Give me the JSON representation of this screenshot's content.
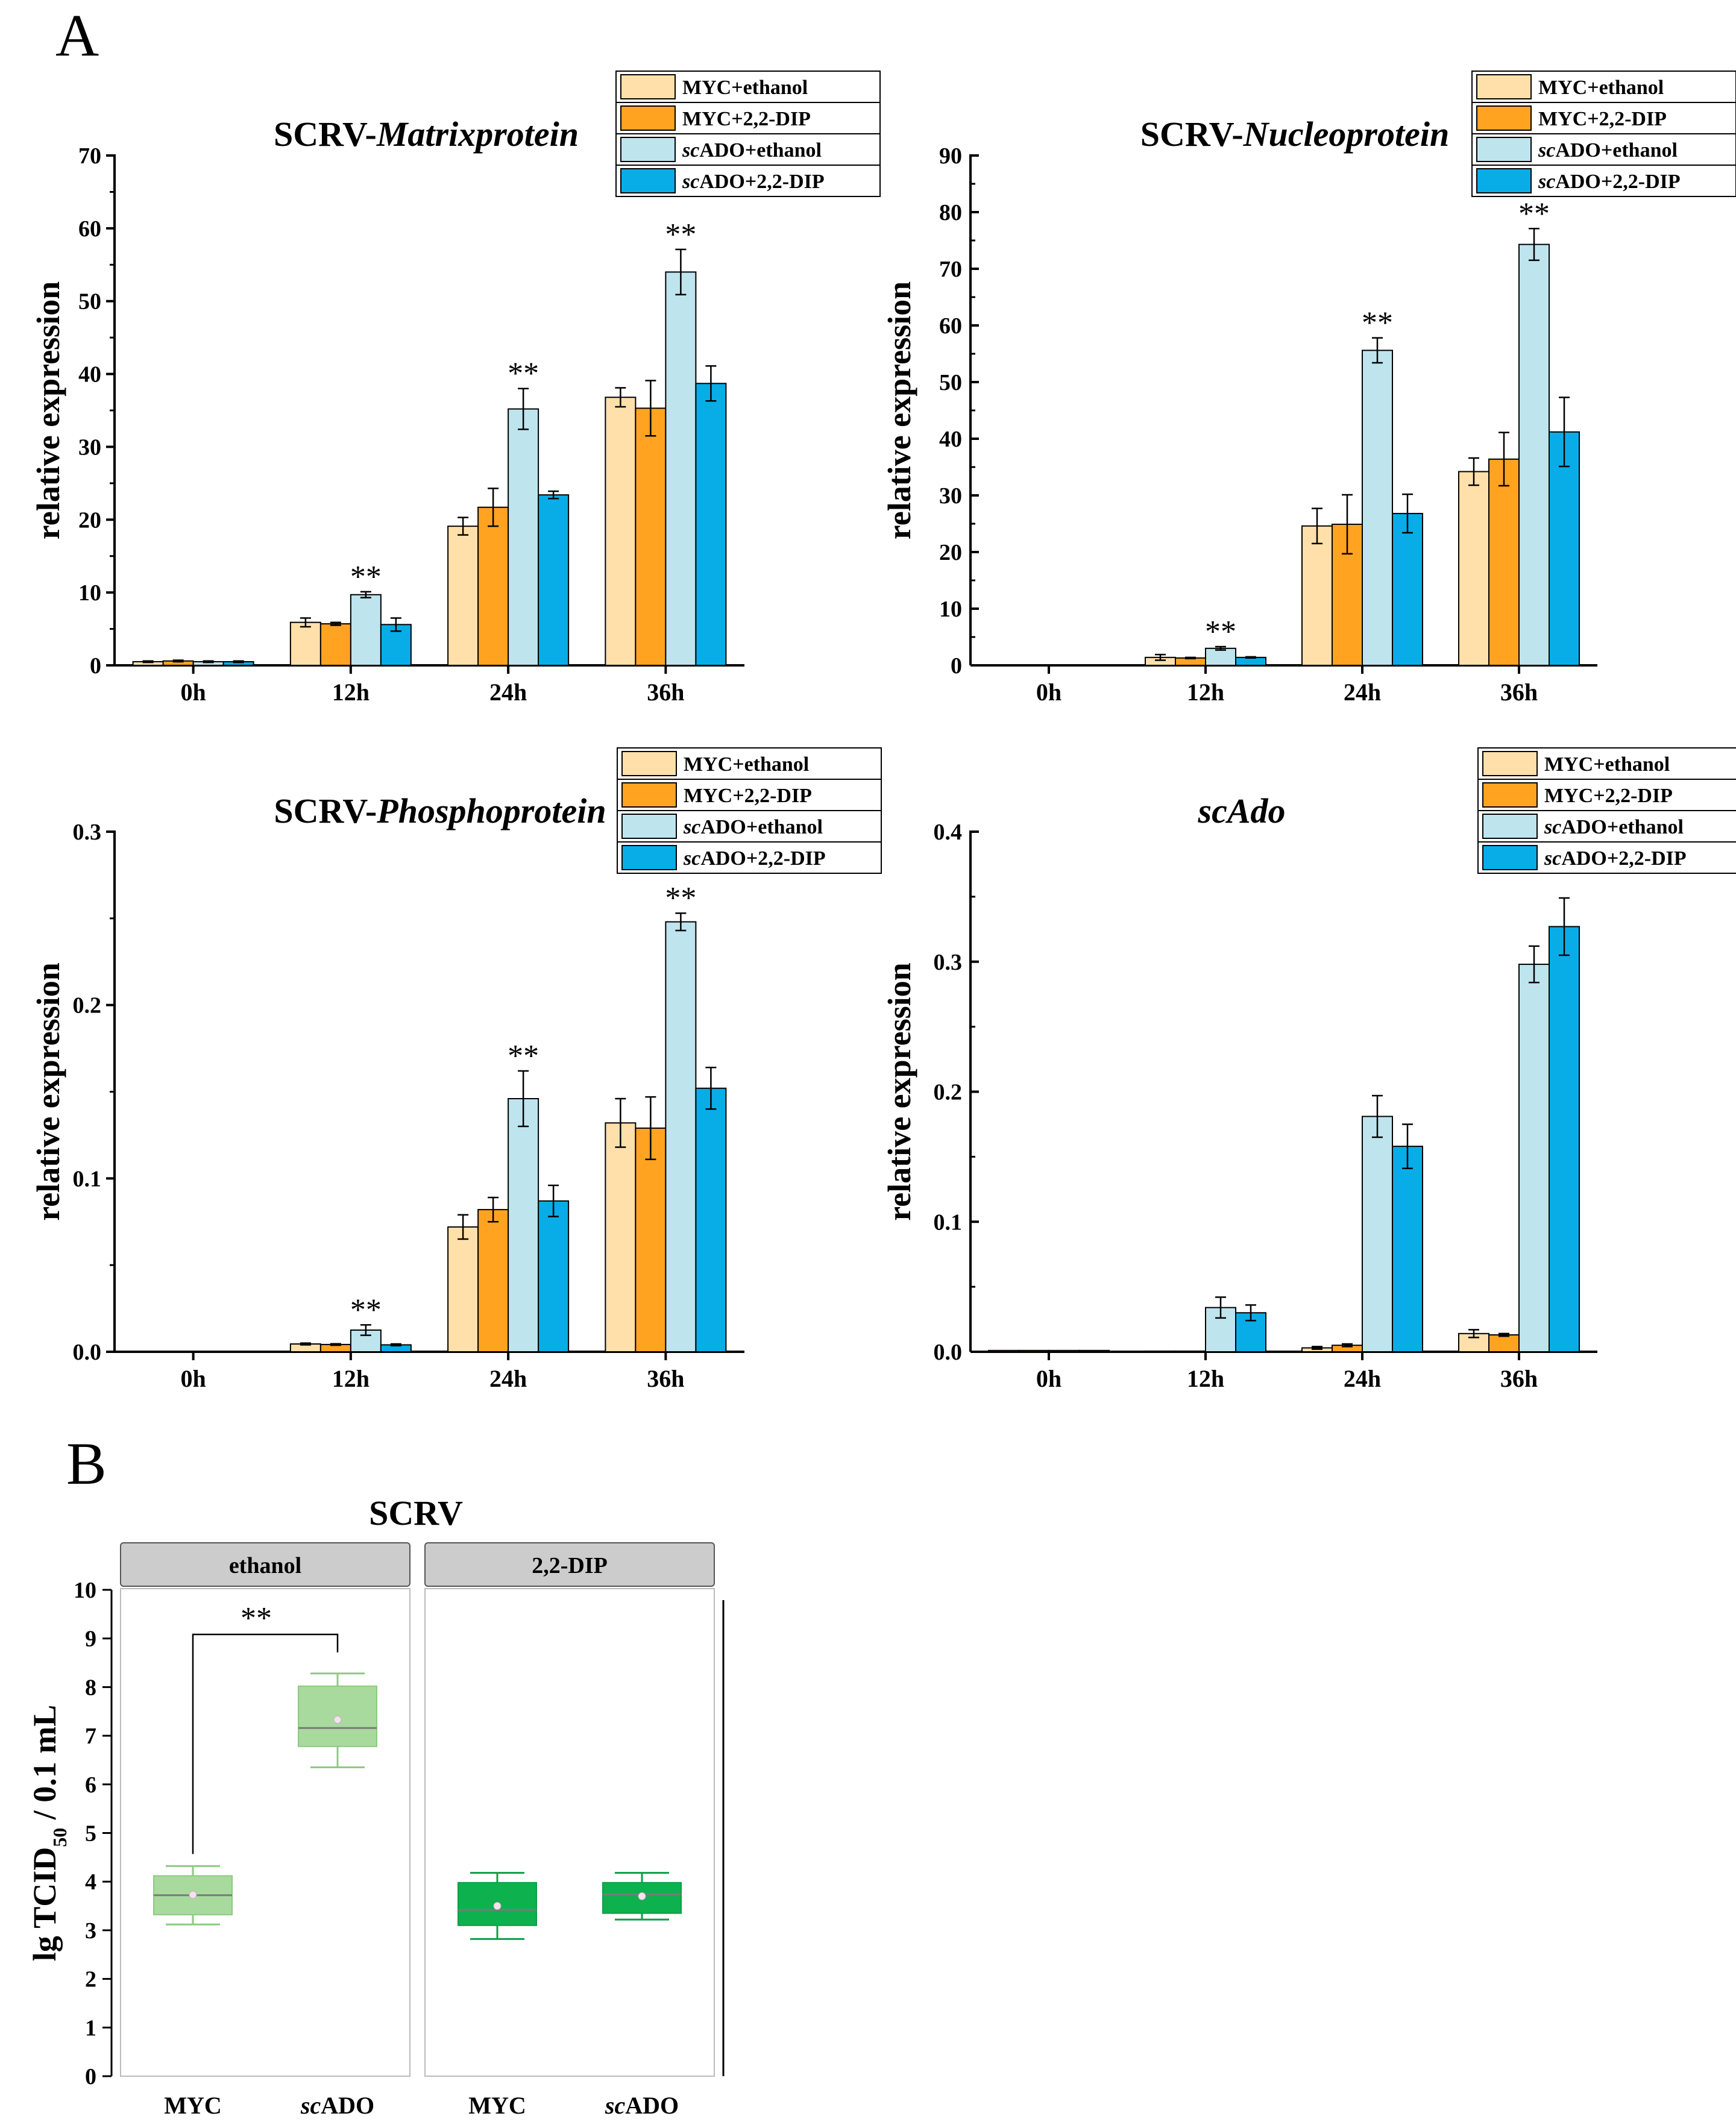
{
  "figure": {
    "panel_a_label": "A",
    "panel_b_label": "B"
  },
  "colors": {
    "myc_ethanol": "#FFE0AA",
    "myc_dip": "#FFA321",
    "scado_ethanol": "#BEE4EE",
    "scado_dip": "#08ADE8",
    "box_ethanol": "#A8DA9E",
    "box_ethanol_edge": "#8CCB80",
    "box_dip": "#0DB14E",
    "box_dip_edge": "#0A9F45",
    "strip_fill": "#CCCCCC",
    "median_line": "#7A7A7A"
  },
  "chart_data": [
    {
      "type": "bar",
      "title_prefix": "SCRV-",
      "title_italic": "Matrixprotein",
      "ylabel": "relative expression",
      "xlabel": "",
      "ylim": [
        0,
        70
      ],
      "yticks": [
        "0",
        "10",
        "20",
        "30",
        "40",
        "50",
        "60",
        "70"
      ],
      "ytick_values": [
        0,
        10,
        20,
        30,
        40,
        50,
        60,
        70
      ],
      "categories": [
        "0h",
        "12h",
        "24h",
        "36h"
      ],
      "legend_position": "top-right",
      "legend": [
        {
          "prefix": "MYC+ethanol",
          "italic": "",
          "suffix": "",
          "color_key": "myc_ethanol"
        },
        {
          "prefix": "MYC+2,2-DIP",
          "italic": "",
          "suffix": "",
          "color_key": "myc_dip"
        },
        {
          "prefix": "",
          "italic": "sc",
          "suffix": "ADO+ethanol",
          "color_key": "scado_ethanol"
        },
        {
          "prefix": "",
          "italic": "sc",
          "suffix": "ADO+2,2-DIP",
          "color_key": "scado_dip"
        }
      ],
      "series": [
        {
          "name": "MYC+ethanol",
          "color_key": "myc_ethanol",
          "values": [
            0.5,
            5.9,
            19.1,
            36.8
          ],
          "errors": [
            0.1,
            0.6,
            1.2,
            1.3
          ]
        },
        {
          "name": "MYC+2,2-DIP",
          "color_key": "myc_dip",
          "values": [
            0.6,
            5.7,
            21.7,
            35.3
          ],
          "errors": [
            0.1,
            0.2,
            2.6,
            3.8
          ]
        },
        {
          "name": "scADO+ethanol",
          "color_key": "scado_ethanol",
          "values": [
            0.5,
            9.7,
            35.2,
            54.0
          ],
          "errors": [
            0.1,
            0.4,
            2.8,
            3.1
          ]
        },
        {
          "name": "scADO+2,2-DIP",
          "color_key": "scado_dip",
          "values": [
            0.5,
            5.6,
            23.4,
            38.7
          ],
          "errors": [
            0.1,
            0.9,
            0.5,
            2.4
          ]
        }
      ],
      "annotations": [
        {
          "text": "**",
          "category_index": 1,
          "series_index": 2
        },
        {
          "text": "**",
          "category_index": 2,
          "series_index": 2
        },
        {
          "text": "**",
          "category_index": 3,
          "series_index": 2
        }
      ]
    },
    {
      "type": "bar",
      "title_prefix": "SCRV-",
      "title_italic": "Nucleoprotein",
      "ylabel": "relative expression",
      "xlabel": "",
      "ylim": [
        0,
        90
      ],
      "yticks": [
        "0",
        "10",
        "20",
        "30",
        "40",
        "50",
        "60",
        "70",
        "80",
        "90"
      ],
      "ytick_values": [
        0,
        10,
        20,
        30,
        40,
        50,
        60,
        70,
        80,
        90
      ],
      "categories": [
        "0h",
        "12h",
        "24h",
        "36h"
      ],
      "legend_position": "top-right",
      "legend": [
        {
          "prefix": "MYC+ethanol",
          "italic": "",
          "suffix": "",
          "color_key": "myc_ethanol"
        },
        {
          "prefix": "MYC+2,2-DIP",
          "italic": "",
          "suffix": "",
          "color_key": "myc_dip"
        },
        {
          "prefix": "",
          "italic": "sc",
          "suffix": "ADO+ethanol",
          "color_key": "scado_ethanol"
        },
        {
          "prefix": "",
          "italic": "sc",
          "suffix": "ADO+2,2-DIP",
          "color_key": "scado_dip"
        }
      ],
      "series": [
        {
          "name": "MYC+ethanol",
          "color_key": "myc_ethanol",
          "values": [
            0.05,
            1.4,
            24.6,
            34.2
          ],
          "errors": [
            0,
            0.5,
            3.1,
            2.4
          ]
        },
        {
          "name": "MYC+2,2-DIP",
          "color_key": "myc_dip",
          "values": [
            0.05,
            1.3,
            24.9,
            36.4
          ],
          "errors": [
            0,
            0.1,
            5.2,
            4.7
          ]
        },
        {
          "name": "scADO+ethanol",
          "color_key": "scado_ethanol",
          "values": [
            0.05,
            3.0,
            55.6,
            74.3
          ],
          "errors": [
            0,
            0.3,
            2.2,
            2.8
          ]
        },
        {
          "name": "scADO+2,2-DIP",
          "color_key": "scado_dip",
          "values": [
            0.05,
            1.4,
            26.8,
            41.2
          ],
          "errors": [
            0,
            0.1,
            3.4,
            6.1
          ]
        }
      ],
      "annotations": [
        {
          "text": "**",
          "category_index": 1,
          "series_index": 2
        },
        {
          "text": "**",
          "category_index": 2,
          "series_index": 2
        },
        {
          "text": "**",
          "category_index": 3,
          "series_index": 2
        }
      ]
    },
    {
      "type": "bar",
      "title_prefix": "SCRV-",
      "title_italic": "Phosphoprotein",
      "ylabel": "relative expression",
      "xlabel": "",
      "ylim": [
        0,
        0.3
      ],
      "yticks": [
        "0.0",
        "0.1",
        "0.2",
        "0.3"
      ],
      "ytick_values": [
        0,
        0.1,
        0.2,
        0.3
      ],
      "categories": [
        "0h",
        "12h",
        "24h",
        "36h"
      ],
      "legend_position": "top-right",
      "legend": [
        {
          "prefix": "MYC+ethanol",
          "italic": "",
          "suffix": "",
          "color_key": "myc_ethanol"
        },
        {
          "prefix": "MYC+2,2-DIP",
          "italic": "",
          "suffix": "",
          "color_key": "myc_dip"
        },
        {
          "prefix": "",
          "italic": "sc",
          "suffix": "ADO+ethanol",
          "color_key": "scado_ethanol"
        },
        {
          "prefix": "",
          "italic": "sc",
          "suffix": "ADO+2,2-DIP",
          "color_key": "scado_dip"
        }
      ],
      "series": [
        {
          "name": "MYC+ethanol",
          "color_key": "myc_ethanol",
          "values": [
            0.0002,
            0.0045,
            0.072,
            0.132
          ],
          "errors": [
            0,
            0.0005,
            0.007,
            0.014
          ]
        },
        {
          "name": "MYC+2,2-DIP",
          "color_key": "myc_dip",
          "values": [
            0.0002,
            0.0042,
            0.082,
            0.129
          ],
          "errors": [
            0,
            0.0004,
            0.007,
            0.018
          ]
        },
        {
          "name": "scADO+ethanol",
          "color_key": "scado_ethanol",
          "values": [
            0.0002,
            0.0125,
            0.146,
            0.248
          ],
          "errors": [
            0,
            0.003,
            0.016,
            0.005
          ]
        },
        {
          "name": "scADO+2,2-DIP",
          "color_key": "scado_dip",
          "values": [
            0.0002,
            0.004,
            0.087,
            0.152
          ],
          "errors": [
            0,
            0.0005,
            0.009,
            0.012
          ]
        }
      ],
      "annotations": [
        {
          "text": "**",
          "category_index": 1,
          "series_index": 2
        },
        {
          "text": "**",
          "category_index": 2,
          "series_index": 2
        },
        {
          "text": "**",
          "category_index": 3,
          "series_index": 2
        }
      ]
    },
    {
      "type": "bar",
      "title_prefix": "",
      "title_italic": "scAdo",
      "ylabel": "relative expression",
      "xlabel": "",
      "ylim": [
        0,
        0.4
      ],
      "yticks": [
        "0.0",
        "0.1",
        "0.2",
        "0.3",
        "0.4"
      ],
      "ytick_values": [
        0,
        0.1,
        0.2,
        0.3,
        0.4
      ],
      "categories": [
        "0h",
        "12h",
        "24h",
        "36h"
      ],
      "legend_position": "top-right",
      "legend": [
        {
          "prefix": "MYC+ethanol",
          "italic": "",
          "suffix": "",
          "color_key": "myc_ethanol"
        },
        {
          "prefix": "MYC+2,2-DIP",
          "italic": "",
          "suffix": "",
          "color_key": "myc_dip"
        },
        {
          "prefix": "",
          "italic": "sc",
          "suffix": "ADO+ethanol",
          "color_key": "scado_ethanol"
        },
        {
          "prefix": "",
          "italic": "sc",
          "suffix": "ADO+2,2-DIP",
          "color_key": "scado_dip"
        }
      ],
      "series": [
        {
          "name": "MYC+ethanol",
          "color_key": "myc_ethanol",
          "values": [
            0.001,
            0.0005,
            0.003,
            0.014
          ],
          "errors": [
            0,
            0,
            0.001,
            0.003
          ]
        },
        {
          "name": "MYC+2,2-DIP",
          "color_key": "myc_dip",
          "values": [
            0.001,
            0.0005,
            0.005,
            0.013
          ],
          "errors": [
            0,
            0,
            0.001,
            0.001
          ]
        },
        {
          "name": "scADO+ethanol",
          "color_key": "scado_ethanol",
          "values": [
            0.001,
            0.034,
            0.181,
            0.298
          ],
          "errors": [
            0,
            0.008,
            0.016,
            0.014
          ]
        },
        {
          "name": "scADO+2,2-DIP",
          "color_key": "scado_dip",
          "values": [
            0.001,
            0.03,
            0.158,
            0.327
          ],
          "errors": [
            0,
            0.006,
            0.017,
            0.022
          ]
        }
      ],
      "annotations": []
    },
    {
      "type": "box",
      "title": "SCRV",
      "ylabel_main": "lg TCID",
      "ylabel_sub": "50",
      "ylabel_tail": " / 0.1 mL",
      "ylim": [
        0,
        10
      ],
      "yticks": [
        "0",
        "1",
        "2",
        "3",
        "4",
        "5",
        "6",
        "7",
        "8",
        "9",
        "10"
      ],
      "ytick_values": [
        0,
        1,
        2,
        3,
        4,
        5,
        6,
        7,
        8,
        9,
        10
      ],
      "facets": [
        {
          "label": "ethanol",
          "color_key": "box_ethanol",
          "edge_key": "box_ethanol_edge",
          "groups": [
            {
              "prefix": "MYC",
              "italic": "",
              "suffix": "",
              "min": 3.12,
              "q1": 3.32,
              "median": 3.72,
              "mean": 3.73,
              "q3": 4.12,
              "max": 4.32
            },
            {
              "prefix": "",
              "italic": "sc",
              "suffix": "ADO",
              "min": 6.35,
              "q1": 6.78,
              "median": 7.16,
              "mean": 7.33,
              "q3": 8.02,
              "max": 8.28
            }
          ],
          "significance": "**"
        },
        {
          "label": "2,2-DIP",
          "color_key": "box_dip",
          "edge_key": "box_dip_edge",
          "groups": [
            {
              "prefix": "MYC",
              "italic": "",
              "suffix": "",
              "min": 2.82,
              "q1": 3.1,
              "median": 3.42,
              "mean": 3.5,
              "q3": 3.98,
              "max": 4.18
            },
            {
              "prefix": "",
              "italic": "sc",
              "suffix": "ADO",
              "min": 3.22,
              "q1": 3.35,
              "median": 3.74,
              "mean": 3.7,
              "q3": 3.98,
              "max": 4.18
            }
          ],
          "significance": ""
        }
      ]
    }
  ]
}
